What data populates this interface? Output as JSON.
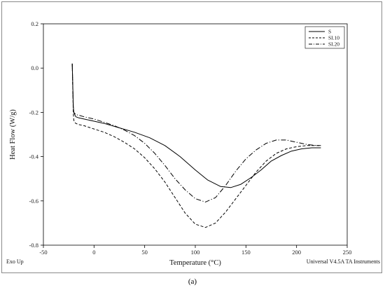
{
  "caption": "(a)",
  "chart_data": {
    "type": "line",
    "title": "",
    "xlabel": "Temperature (°C)",
    "ylabel": "Heat Flow (W/g)",
    "xlim": [
      -50,
      250
    ],
    "ylim": [
      -0.8,
      0.2
    ],
    "xticks": [
      "-50",
      "0",
      "50",
      "100",
      "150",
      "200",
      "250"
    ],
    "yticks": [
      "0.2",
      "0.0",
      "-0.2",
      "-0.4",
      "-0.6",
      "-0.8"
    ],
    "grid": false,
    "legend_position": "top-right",
    "bottom_left_note": "Exo Up",
    "bottom_right_note": "Universal V4.5A TA Instruments",
    "series": [
      {
        "name": "S",
        "style": "solid",
        "x": [
          -21.5,
          -21,
          -20.5,
          -20,
          -19,
          -18,
          -15,
          -10,
          0,
          10,
          25,
          40,
          55,
          70,
          85,
          100,
          112,
          125,
          135,
          145,
          155,
          165,
          175,
          185,
          195,
          205,
          215,
          224
        ],
        "y": [
          0.02,
          -0.08,
          -0.17,
          -0.2,
          -0.21,
          -0.22,
          -0.225,
          -0.23,
          -0.24,
          -0.25,
          -0.27,
          -0.29,
          -0.315,
          -0.35,
          -0.4,
          -0.46,
          -0.505,
          -0.535,
          -0.54,
          -0.525,
          -0.495,
          -0.46,
          -0.42,
          -0.395,
          -0.375,
          -0.365,
          -0.36,
          -0.36
        ]
      },
      {
        "name": "SI.10",
        "style": "dashed",
        "x": [
          -21.5,
          -21,
          -20.5,
          -20,
          -19,
          -18,
          -15,
          -10,
          0,
          10,
          20,
          30,
          40,
          50,
          60,
          70,
          80,
          90,
          100,
          110,
          120,
          130,
          140,
          150,
          160,
          170,
          180,
          190,
          200,
          210,
          220,
          224
        ],
        "y": [
          0.02,
          -0.1,
          -0.2,
          -0.235,
          -0.245,
          -0.25,
          -0.255,
          -0.26,
          -0.275,
          -0.29,
          -0.31,
          -0.335,
          -0.365,
          -0.405,
          -0.455,
          -0.515,
          -0.585,
          -0.655,
          -0.705,
          -0.72,
          -0.7,
          -0.65,
          -0.59,
          -0.53,
          -0.47,
          -0.42,
          -0.385,
          -0.365,
          -0.355,
          -0.35,
          -0.35,
          -0.35
        ]
      },
      {
        "name": "SI.20",
        "style": "dash-dot",
        "x": [
          -21.5,
          -21,
          -20.5,
          -20,
          -19,
          -18,
          -15,
          -10,
          0,
          10,
          20,
          30,
          40,
          50,
          60,
          70,
          80,
          90,
          100,
          110,
          120,
          130,
          140,
          150,
          160,
          170,
          180,
          190,
          200,
          210,
          220,
          224
        ],
        "y": [
          0.02,
          -0.09,
          -0.18,
          -0.2,
          -0.205,
          -0.21,
          -0.213,
          -0.22,
          -0.23,
          -0.245,
          -0.26,
          -0.28,
          -0.305,
          -0.34,
          -0.385,
          -0.44,
          -0.5,
          -0.55,
          -0.59,
          -0.605,
          -0.585,
          -0.53,
          -0.465,
          -0.41,
          -0.37,
          -0.34,
          -0.325,
          -0.325,
          -0.335,
          -0.345,
          -0.35,
          -0.35
        ]
      }
    ]
  }
}
